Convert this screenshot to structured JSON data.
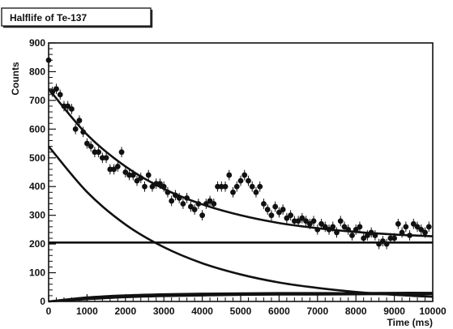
{
  "chart_data": {
    "type": "scatter",
    "title": "Halflife of Te-137",
    "xlabel": "Time (ms)",
    "ylabel": "Counts",
    "xlim": [
      0,
      10000
    ],
    "ylim": [
      0,
      900
    ],
    "xticks": [
      0,
      1000,
      2000,
      3000,
      4000,
      5000,
      6000,
      7000,
      8000,
      9000,
      10000
    ],
    "yticks": [
      0,
      100,
      200,
      300,
      400,
      500,
      600,
      700,
      800,
      900
    ],
    "xtick_labels": [
      "0",
      "1000",
      "2000",
      "3000",
      "4000",
      "5000",
      "6000",
      "7000",
      "8000",
      "9000",
      "10000"
    ],
    "ytick_labels": [
      "0",
      "100",
      "200",
      "300",
      "400",
      "500",
      "600",
      "700",
      "800",
      "900"
    ],
    "grid": false,
    "legend": "none",
    "series": [
      {
        "kind": "points_with_errorbars",
        "error": 18,
        "x": [
          0,
          100,
          200,
          300,
          400,
          500,
          600,
          700,
          800,
          900,
          1000,
          1100,
          1200,
          1300,
          1400,
          1500,
          1600,
          1700,
          1800,
          1900,
          2000,
          2100,
          2200,
          2300,
          2400,
          2500,
          2600,
          2700,
          2800,
          2900,
          3000,
          3100,
          3200,
          3300,
          3400,
          3500,
          3600,
          3700,
          3800,
          3900,
          4000,
          4100,
          4200,
          4300,
          4400,
          4500,
          4600,
          4700,
          4800,
          4900,
          5000,
          5100,
          5200,
          5300,
          5400,
          5500,
          5600,
          5700,
          5800,
          5900,
          6000,
          6100,
          6200,
          6300,
          6400,
          6500,
          6600,
          6700,
          6800,
          6900,
          7000,
          7100,
          7200,
          7300,
          7400,
          7500,
          7600,
          7700,
          7800,
          7900,
          8000,
          8100,
          8200,
          8300,
          8400,
          8500,
          8600,
          8700,
          8800,
          8900,
          9000,
          9100,
          9200,
          9300,
          9400,
          9500,
          9600,
          9700,
          9800,
          9900
        ],
        "y": [
          840,
          730,
          740,
          720,
          680,
          680,
          670,
          600,
          630,
          590,
          550,
          540,
          520,
          520,
          500,
          500,
          460,
          460,
          470,
          520,
          450,
          440,
          440,
          420,
          430,
          400,
          440,
          400,
          410,
          410,
          400,
          380,
          350,
          370,
          360,
          340,
          360,
          330,
          320,
          340,
          300,
          340,
          350,
          340,
          400,
          400,
          400,
          440,
          380,
          400,
          420,
          440,
          420,
          400,
          380,
          400,
          340,
          320,
          300,
          330,
          310,
          320,
          290,
          300,
          280,
          280,
          290,
          280,
          270,
          280,
          250,
          270,
          260,
          250,
          260,
          240,
          280,
          260,
          250,
          230,
          250,
          260,
          220,
          230,
          240,
          230,
          200,
          210,
          200,
          220,
          220,
          270,
          240,
          260,
          230,
          270,
          260,
          250,
          240,
          260
        ]
      },
      {
        "kind": "curve",
        "x": [
          0,
          1000,
          2000,
          3000,
          4000,
          5000,
          6000,
          7000,
          8000,
          9000,
          10000
        ],
        "y": [
          740,
          581,
          470,
          392,
          338,
          300,
          273,
          255,
          242,
          233,
          227
        ]
      },
      {
        "kind": "curve",
        "x": [
          0,
          1000,
          2000,
          3000,
          4000,
          5000,
          6000,
          7000,
          8000,
          9000,
          10000
        ],
        "y": [
          540,
          381,
          268,
          189,
          133,
          94,
          66,
          47,
          33,
          23,
          16
        ]
      },
      {
        "kind": "curve",
        "x": [
          0,
          10000
        ],
        "y": [
          205,
          205
        ]
      },
      {
        "kind": "curve",
        "x": [
          0,
          1000,
          2000,
          3000,
          4000,
          5000,
          6000,
          7000,
          8000,
          9000,
          10000
        ],
        "y": [
          0,
          8,
          15,
          19,
          21,
          23,
          24,
          24,
          25,
          25,
          25
        ]
      },
      {
        "kind": "curve",
        "x": [
          0,
          1000,
          2000,
          3000,
          4000,
          5000,
          6000,
          7000,
          8000,
          9000,
          10000
        ],
        "y": [
          0,
          14,
          21,
          25,
          27,
          28,
          29,
          29,
          29,
          30,
          30
        ]
      }
    ]
  }
}
